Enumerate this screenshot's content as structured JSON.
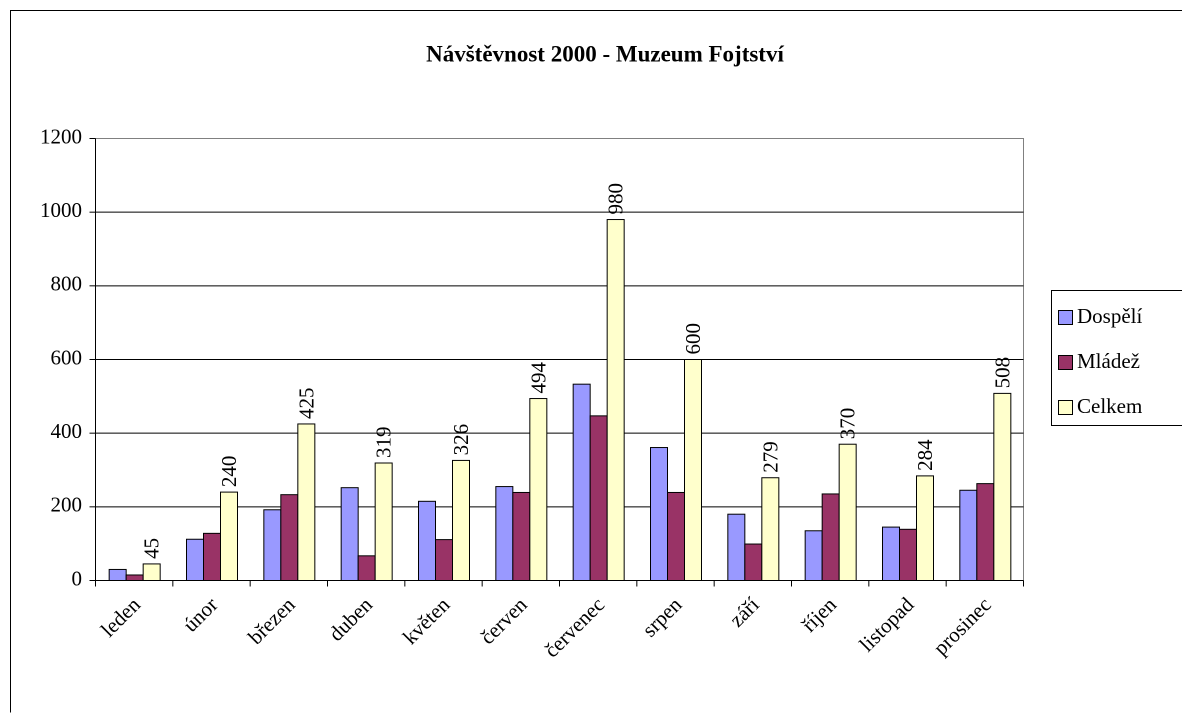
{
  "chart_data": {
    "type": "bar",
    "title": "Návštěvnost 2000 - Muzeum Fojtství",
    "categories": [
      "leden",
      "únor",
      "březen",
      "duben",
      "květen",
      "červen",
      "červenec",
      "srpen",
      "září",
      "říjen",
      "listopad",
      "prosinec"
    ],
    "series": [
      {
        "name": "Dospělí",
        "color": "#9999ff",
        "values": [
          30,
          112,
          192,
          252,
          215,
          255,
          533,
          361,
          180,
          135,
          145,
          245
        ]
      },
      {
        "name": "Mládež",
        "color": "#993366",
        "values": [
          15,
          128,
          233,
          67,
          111,
          239,
          447,
          239,
          99,
          235,
          139,
          263
        ]
      },
      {
        "name": "Celkem",
        "color": "#ffffcc",
        "values": [
          45,
          240,
          425,
          319,
          326,
          494,
          980,
          600,
          279,
          370,
          284,
          508
        ],
        "data_labels": true
      }
    ],
    "ylim": [
      0,
      1200
    ],
    "yticks": [
      0,
      200,
      400,
      600,
      800,
      1000,
      1200
    ],
    "grid": true,
    "legend": "right"
  }
}
